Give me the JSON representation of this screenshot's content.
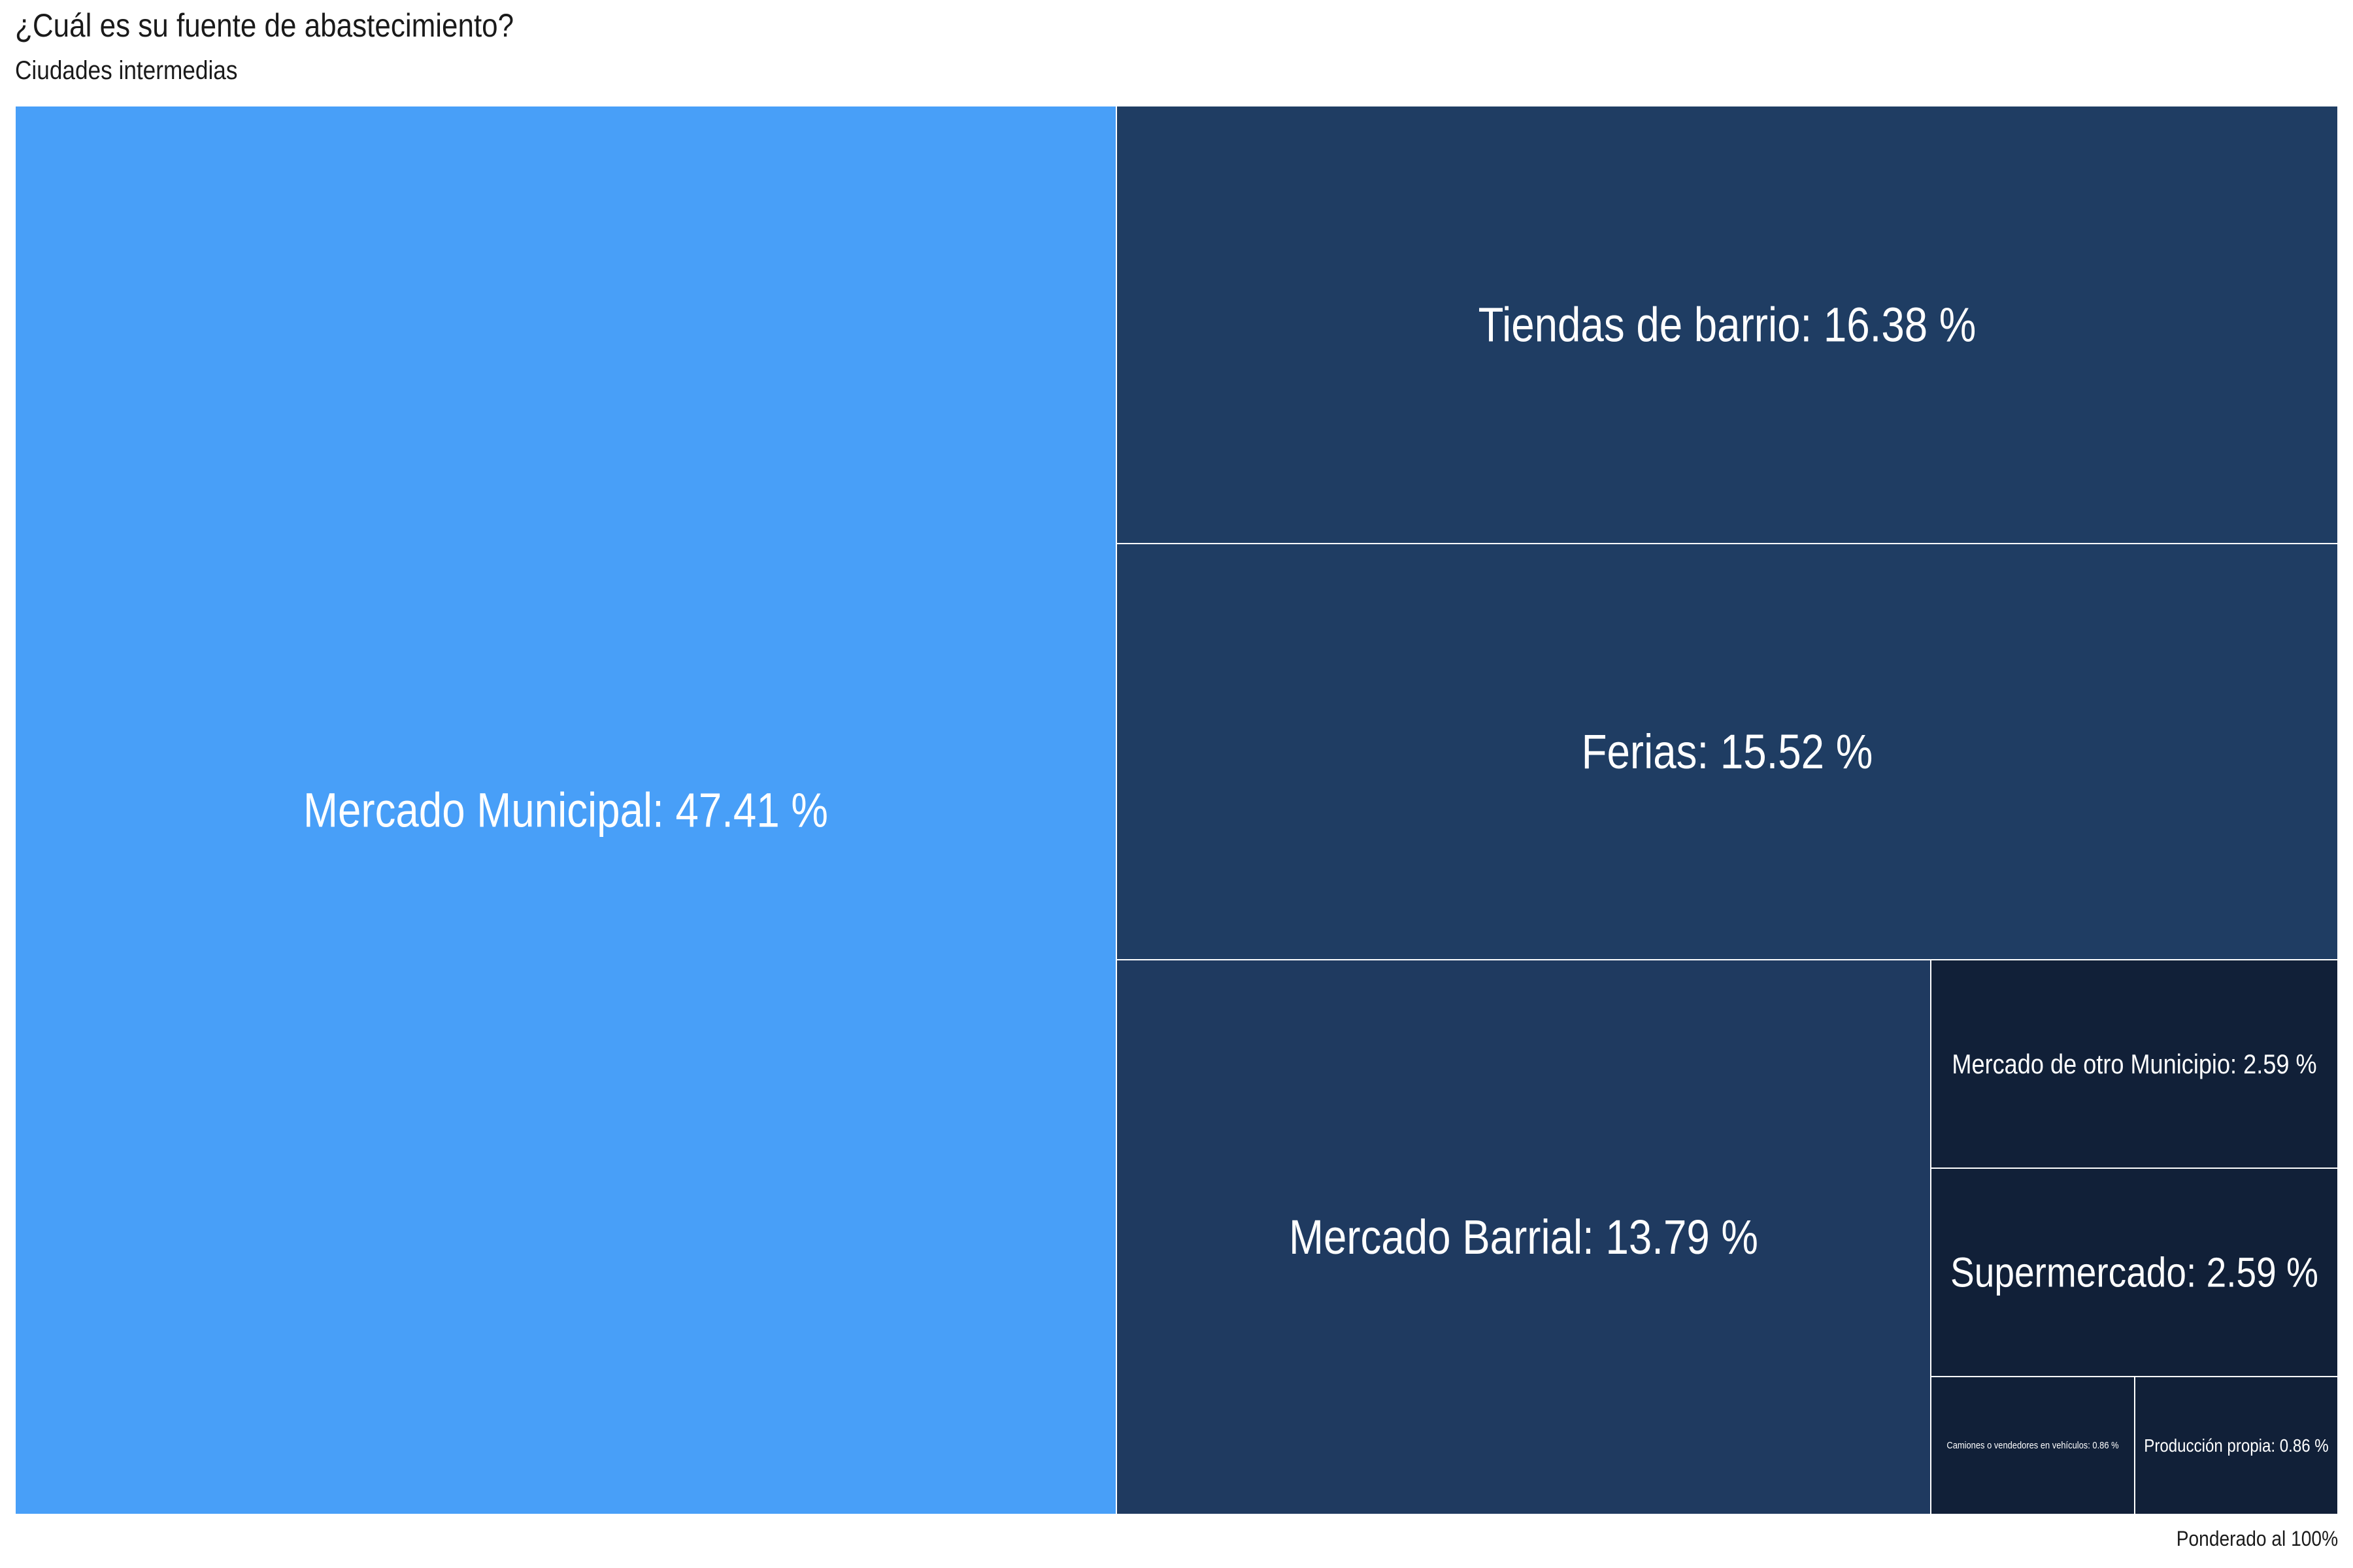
{
  "title": "¿Cuál es su fuente de abastecimiento?",
  "subtitle": "Ciudades intermedias",
  "caption": "Ponderado al 100%",
  "chart_data": {
    "type": "treemap",
    "unit": "%",
    "items": [
      {
        "name": "Mercado Municipal",
        "value": 47.41,
        "label": "Mercado Municipal: 47.41 %",
        "color": "#489ff8"
      },
      {
        "name": "Tiendas de barrio",
        "value": 16.38,
        "label": "Tiendas de barrio: 16.38 %",
        "color": "#1f3d63"
      },
      {
        "name": "Ferias",
        "value": 15.52,
        "label": "Ferias: 15.52 %",
        "color": "#1f3d63"
      },
      {
        "name": "Mercado Barrial",
        "value": 13.79,
        "label": "Mercado Barrial: 13.79 %",
        "color": "#1f3a60"
      },
      {
        "name": "Mercado de otro Municipio",
        "value": 2.59,
        "label": "Mercado de otro Municipio: 2.59 %",
        "color": "#112038"
      },
      {
        "name": "Supermercado",
        "value": 2.59,
        "label": "Supermercado: 2.59 %",
        "color": "#112038"
      },
      {
        "name": "Camiones o vendedores en vehículos",
        "value": 0.86,
        "label": "Camiones o vendedores en vehículos: 0.86 %",
        "color": "#112038"
      },
      {
        "name": "Producción propia",
        "value": 0.86,
        "label": "Producción propia: 0.86 %",
        "color": "#112038"
      }
    ]
  }
}
